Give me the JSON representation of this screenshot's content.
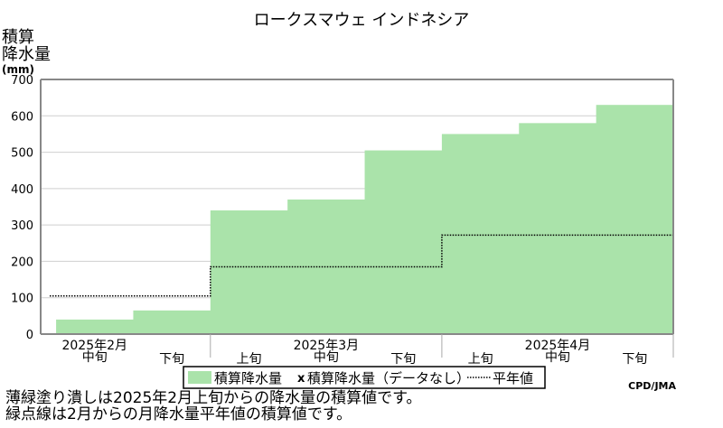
{
  "chart_data": {
    "type": "area",
    "title": "ロークスマウェ インドネシア",
    "ylabel": [
      "積算",
      "降水量",
      "(mm)"
    ],
    "ylim": [
      0,
      700
    ],
    "y_ticks": [
      0,
      100,
      200,
      300,
      400,
      500,
      600,
      700
    ],
    "grid": true,
    "legend_placement": "bottom",
    "month_labels": [
      "2025年2月",
      "2025年3月",
      "2025年4月"
    ],
    "period_labels": [
      "中旬",
      "下旬",
      "上旬",
      "中旬",
      "下旬",
      "上旬",
      "中旬",
      "下旬"
    ],
    "series": [
      {
        "name": "積算降水量",
        "style": "filled-step",
        "color": "#aae3aa",
        "values": [
          40,
          65,
          340,
          370,
          505,
          550,
          580,
          630
        ]
      },
      {
        "name": "積算降水量（データなし）",
        "style": "marker",
        "marker": "x",
        "values": []
      },
      {
        "name": "平年値",
        "style": "dotted-step",
        "color": "#000000",
        "values": [
          105,
          105,
          185,
          185,
          185,
          272,
          272,
          272
        ]
      }
    ],
    "source": "CPD/JMA"
  },
  "notes": [
    "薄緑塗り潰しは2025年2月上旬からの降水量の積算値です。",
    "緑点線は2月からの月降水量平年値の積算値です。"
  ]
}
